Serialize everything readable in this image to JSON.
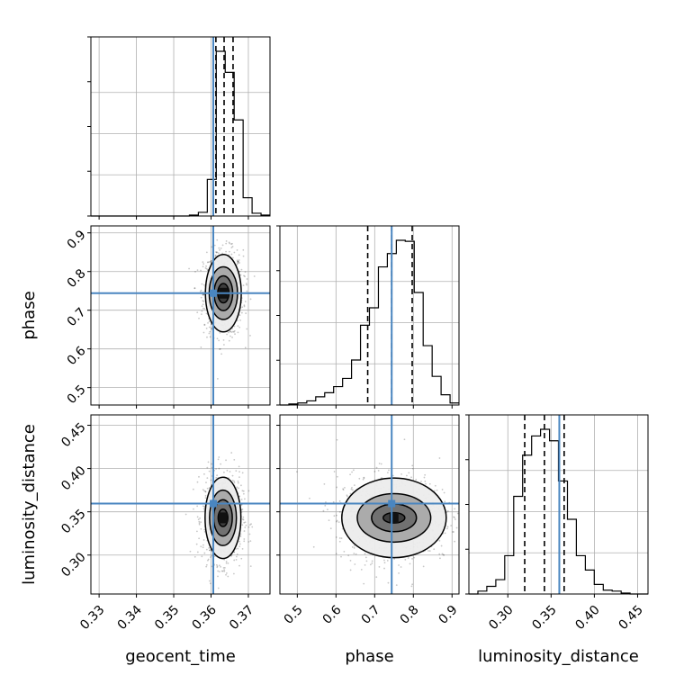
{
  "chart_data": {
    "type": "corner",
    "parameters": [
      "geocent_time",
      "phase",
      "luminosity_distance"
    ],
    "axis_labels": {
      "x": [
        "geocent_time",
        "phase",
        "luminosity_distance"
      ],
      "y": [
        "phase",
        "luminosity_distance"
      ]
    },
    "ranges": {
      "geocent_time": [
        0.3278,
        0.3758
      ],
      "phase": [
        0.455,
        0.918
      ],
      "luminosity_distance": [
        0.255,
        0.462
      ]
    },
    "ticks": {
      "geocent_time": [
        "0.33",
        "0.34",
        "0.35",
        "0.36",
        "0.37"
      ],
      "phase": [
        "0.5",
        "0.6",
        "0.7",
        "0.8",
        "0.9"
      ],
      "luminosity_distance": [
        "0.30",
        "0.35",
        "0.40",
        "0.45"
      ]
    },
    "truths": {
      "geocent_time": 0.3606,
      "phase": 0.744,
      "luminosity_distance": 0.3595
    },
    "quantiles": {
      "geocent_time": [
        0.3613,
        0.3635,
        0.3659
      ],
      "phase": [
        0.682,
        0.744,
        0.797
      ],
      "luminosity_distance": [
        0.3195,
        0.3423,
        0.3651
      ]
    },
    "histograms": {
      "geocent_time": {
        "edges": [
          0.3278,
          0.3302,
          0.3326,
          0.335,
          0.3374,
          0.3398,
          0.3422,
          0.3446,
          0.347,
          0.3494,
          0.3518,
          0.3542,
          0.3566,
          0.359,
          0.3614,
          0.3638,
          0.3662,
          0.3686,
          0.371,
          0.3734,
          0.3758
        ],
        "counts": [
          0,
          0,
          0,
          0,
          0,
          0,
          0,
          0,
          0,
          0,
          0,
          1,
          4,
          40,
          180,
          157,
          105,
          20,
          3,
          1
        ]
      },
      "phase": {
        "edges": [
          0.455,
          0.4782,
          0.5013,
          0.5245,
          0.5476,
          0.5708,
          0.5939,
          0.6171,
          0.6402,
          0.6634,
          0.6865,
          0.7097,
          0.7328,
          0.756,
          0.7791,
          0.8023,
          0.8254,
          0.8486,
          0.8717,
          0.8949,
          0.918
        ],
        "counts": [
          0,
          1,
          2,
          4,
          8,
          12,
          18,
          26,
          44,
          78,
          95,
          135,
          148,
          161,
          160,
          110,
          58,
          28,
          10,
          2
        ]
      },
      "luminosity_distance": {
        "edges": [
          0.255,
          0.2654,
          0.2757,
          0.2861,
          0.2964,
          0.3068,
          0.3171,
          0.3275,
          0.3378,
          0.3482,
          0.3585,
          0.3689,
          0.3792,
          0.3896,
          0.3999,
          0.4103,
          0.4206,
          0.431,
          0.4413,
          0.4517,
          0.462
        ],
        "counts": [
          0,
          3,
          8,
          15,
          40,
          102,
          145,
          165,
          172,
          160,
          118,
          78,
          40,
          25,
          10,
          4,
          3,
          1,
          0,
          0
        ]
      }
    },
    "contours_2d": [
      {
        "x": "geocent_time",
        "y": "phase",
        "center": [
          0.3633,
          0.744
        ],
        "levels": [
          {
            "dx": 0.0015,
            "dy": 0.025
          },
          {
            "dx": 0.0025,
            "dy": 0.045
          },
          {
            "dx": 0.0038,
            "dy": 0.068
          },
          {
            "dx": 0.0048,
            "dy": 0.1
          }
        ]
      },
      {
        "x": "geocent_time",
        "y": "luminosity_distance",
        "center": [
          0.3632,
          0.343
        ],
        "levels": [
          {
            "dx": 0.0013,
            "dy": 0.01
          },
          {
            "dx": 0.0025,
            "dy": 0.021
          },
          {
            "dx": 0.0036,
            "dy": 0.032
          },
          {
            "dx": 0.0048,
            "dy": 0.047
          }
        ]
      },
      {
        "x": "phase",
        "y": "luminosity_distance",
        "center": [
          0.75,
          0.343
        ],
        "levels": [
          {
            "dx": 0.028,
            "dy": 0.006
          },
          {
            "dx": 0.058,
            "dy": 0.016
          },
          {
            "dx": 0.095,
            "dy": 0.028
          },
          {
            "dx": 0.135,
            "dy": 0.046
          }
        ]
      }
    ],
    "grid": true,
    "truth_color": "#4a86c0"
  }
}
